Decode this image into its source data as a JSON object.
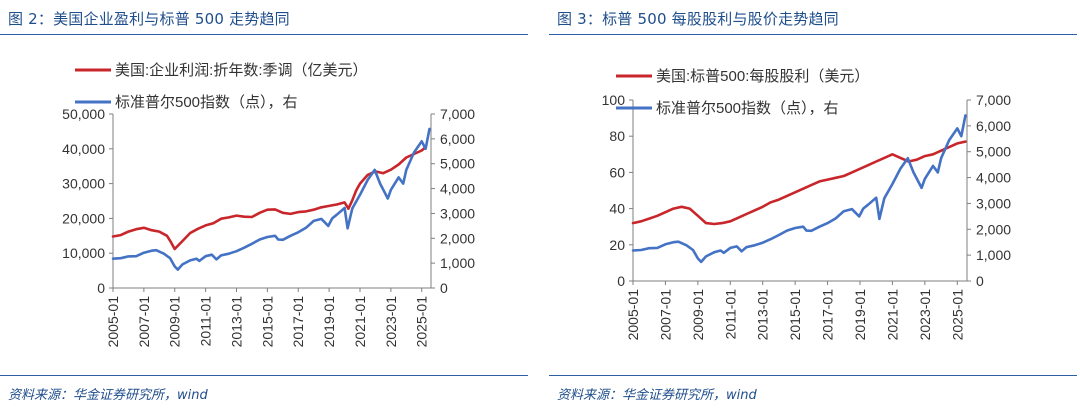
{
  "figures": {
    "left": {
      "title": "图 2：美国企业盈利与标普 500 走势趋同",
      "source": "资料来源：华金证券研究所，wind"
    },
    "right": {
      "title": "图 3：标普 500 每股股利与股价走势趋同",
      "source": "资料来源：华金证券研究所，wind"
    }
  },
  "colors": {
    "red_series": "#c8262b",
    "blue_series": "#4472c4",
    "accent": "#1f4e8c",
    "axis": "#7f7f7f"
  },
  "chart_data": [
    {
      "id": "left",
      "type": "line",
      "x_ticks": [
        "2005-01",
        "2007-01",
        "2009-01",
        "2011-01",
        "2013-01",
        "2015-01",
        "2017-01",
        "2019-01",
        "2021-01",
        "2023-01",
        "2025-01"
      ],
      "x_range": [
        2005.0,
        2025.6
      ],
      "y_left": {
        "range": [
          0,
          50000
        ],
        "ticks": [
          "0",
          "10,000",
          "20,000",
          "30,000",
          "40,000",
          "50,000"
        ],
        "tick_values": [
          0,
          10000,
          20000,
          30000,
          40000,
          50000
        ]
      },
      "y_right": {
        "range": [
          0,
          7000
        ],
        "ticks": [
          "0",
          "1,000",
          "2,000",
          "3,000",
          "4,000",
          "5,000",
          "6,000",
          "7,000"
        ],
        "tick_values": [
          0,
          1000,
          2000,
          3000,
          4000,
          5000,
          6000,
          7000
        ]
      },
      "series": [
        {
          "name": "美国:企业利润:折年数:季调（亿美元）",
          "axis": "left",
          "color": "#c8262b",
          "x": [
            2005.0,
            2005.5,
            2006.0,
            2006.5,
            2007.0,
            2007.5,
            2008.0,
            2008.5,
            2008.75,
            2009.0,
            2009.5,
            2010.0,
            2010.5,
            2011.0,
            2011.5,
            2012.0,
            2012.5,
            2013.0,
            2013.5,
            2014.0,
            2014.5,
            2015.0,
            2015.5,
            2016.0,
            2016.5,
            2017.0,
            2017.5,
            2018.0,
            2018.5,
            2019.0,
            2019.5,
            2020.0,
            2020.25,
            2020.5,
            2020.75,
            2021.0,
            2021.5,
            2022.0,
            2022.5,
            2023.0,
            2023.5,
            2024.0,
            2024.5,
            2025.0,
            2025.25
          ],
          "values": [
            14800,
            15200,
            16200,
            16900,
            17300,
            16600,
            16200,
            15000,
            13200,
            11200,
            13500,
            15800,
            17000,
            18000,
            18600,
            19900,
            20300,
            20800,
            20500,
            20400,
            21600,
            22500,
            22600,
            21600,
            21300,
            21800,
            22000,
            22500,
            23200,
            23600,
            24000,
            24600,
            22800,
            25200,
            28000,
            30000,
            32500,
            33500,
            33000,
            34000,
            35500,
            37500,
            38500,
            39500,
            40500
          ]
        },
        {
          "name": "标准普尔500指数（点），右",
          "axis": "right",
          "color": "#4472c4",
          "x": [
            2005.0,
            2005.5,
            2006.0,
            2006.5,
            2007.0,
            2007.5,
            2007.8,
            2008.3,
            2008.7,
            2009.0,
            2009.2,
            2009.5,
            2010.0,
            2010.4,
            2010.6,
            2011.0,
            2011.4,
            2011.7,
            2012.0,
            2012.5,
            2013.0,
            2013.5,
            2014.0,
            2014.5,
            2015.0,
            2015.5,
            2015.7,
            2016.0,
            2016.5,
            2017.0,
            2017.5,
            2018.0,
            2018.5,
            2018.95,
            2019.2,
            2019.5,
            2020.0,
            2020.2,
            2020.5,
            2021.0,
            2021.5,
            2021.95,
            2022.3,
            2022.8,
            2023.0,
            2023.5,
            2023.8,
            2024.0,
            2024.5,
            2025.0,
            2025.25,
            2025.5
          ],
          "values": [
            1180,
            1200,
            1270,
            1280,
            1420,
            1500,
            1520,
            1380,
            1200,
            870,
            740,
            950,
            1110,
            1180,
            1090,
            1280,
            1340,
            1150,
            1310,
            1380,
            1480,
            1620,
            1780,
            1950,
            2050,
            2100,
            1950,
            1940,
            2100,
            2240,
            2420,
            2700,
            2780,
            2500,
            2800,
            2950,
            3220,
            2400,
            3200,
            3750,
            4350,
            4750,
            4200,
            3600,
            3950,
            4450,
            4200,
            4750,
            5450,
            5900,
            5600,
            6400
          ]
        }
      ],
      "legend": [
        "美国:企业利润:折年数:季调（亿美元）",
        "标准普尔500指数（点），右"
      ]
    },
    {
      "id": "right",
      "type": "line",
      "x_ticks": [
        "2005-01",
        "2007-01",
        "2009-01",
        "2011-01",
        "2013-01",
        "2015-01",
        "2017-01",
        "2019-01",
        "2021-01",
        "2023-01",
        "2025-01"
      ],
      "x_range": [
        2005.0,
        2025.6
      ],
      "y_left": {
        "range": [
          0,
          100
        ],
        "ticks": [
          "0",
          "20",
          "40",
          "60",
          "80",
          "100"
        ],
        "tick_values": [
          0,
          20,
          40,
          60,
          80,
          100
        ]
      },
      "y_right": {
        "range": [
          0,
          7000
        ],
        "ticks": [
          "0",
          "1,000",
          "2,000",
          "3,000",
          "4,000",
          "5,000",
          "6,000",
          "7,000"
        ],
        "tick_values": [
          0,
          1000,
          2000,
          3000,
          4000,
          5000,
          6000,
          7000
        ]
      },
      "series": [
        {
          "name": "美国:标普500:每股股利（美元）",
          "axis": "left",
          "color": "#c8262b",
          "x": [
            2005.0,
            2005.5,
            2006.0,
            2006.5,
            2007.0,
            2007.5,
            2008.0,
            2008.5,
            2009.0,
            2009.5,
            2010.0,
            2010.5,
            2011.0,
            2011.5,
            2012.0,
            2012.5,
            2013.0,
            2013.5,
            2014.0,
            2014.5,
            2015.0,
            2015.5,
            2016.0,
            2016.5,
            2017.0,
            2017.5,
            2018.0,
            2018.5,
            2019.0,
            2019.5,
            2020.0,
            2020.5,
            2021.0,
            2021.5,
            2022.0,
            2022.5,
            2023.0,
            2023.5,
            2024.0,
            2024.5,
            2025.0,
            2025.5
          ],
          "values": [
            32,
            33,
            34.5,
            36,
            38,
            40,
            41,
            40,
            36,
            32,
            31.5,
            32,
            33,
            35,
            37,
            39,
            41,
            43.5,
            45,
            47,
            49,
            51,
            53,
            55,
            56,
            57,
            58,
            60,
            62,
            64,
            66,
            68,
            70,
            68,
            66,
            67,
            69,
            70,
            72,
            74,
            76,
            77
          ]
        },
        {
          "name": "标准普尔500指数（点），右",
          "axis": "right",
          "color": "#4472c4",
          "x": [
            2005.0,
            2005.5,
            2006.0,
            2006.5,
            2007.0,
            2007.5,
            2007.8,
            2008.3,
            2008.7,
            2009.0,
            2009.2,
            2009.5,
            2010.0,
            2010.4,
            2010.6,
            2011.0,
            2011.4,
            2011.7,
            2012.0,
            2012.5,
            2013.0,
            2013.5,
            2014.0,
            2014.5,
            2015.0,
            2015.5,
            2015.7,
            2016.0,
            2016.5,
            2017.0,
            2017.5,
            2018.0,
            2018.5,
            2018.95,
            2019.2,
            2019.5,
            2020.0,
            2020.2,
            2020.5,
            2021.0,
            2021.5,
            2021.95,
            2022.3,
            2022.8,
            2023.0,
            2023.5,
            2023.8,
            2024.0,
            2024.5,
            2025.0,
            2025.25,
            2025.5
          ],
          "values": [
            1180,
            1200,
            1270,
            1280,
            1420,
            1500,
            1520,
            1380,
            1200,
            870,
            740,
            950,
            1110,
            1180,
            1090,
            1280,
            1340,
            1150,
            1310,
            1380,
            1480,
            1620,
            1780,
            1950,
            2050,
            2100,
            1950,
            1940,
            2100,
            2240,
            2420,
            2700,
            2780,
            2500,
            2800,
            2950,
            3220,
            2400,
            3200,
            3750,
            4350,
            4750,
            4200,
            3600,
            3950,
            4450,
            4200,
            4750,
            5450,
            5900,
            5600,
            6400
          ]
        }
      ],
      "legend": [
        "美国:标普500:每股股利（美元）",
        "标准普尔500指数（点），右"
      ]
    }
  ]
}
